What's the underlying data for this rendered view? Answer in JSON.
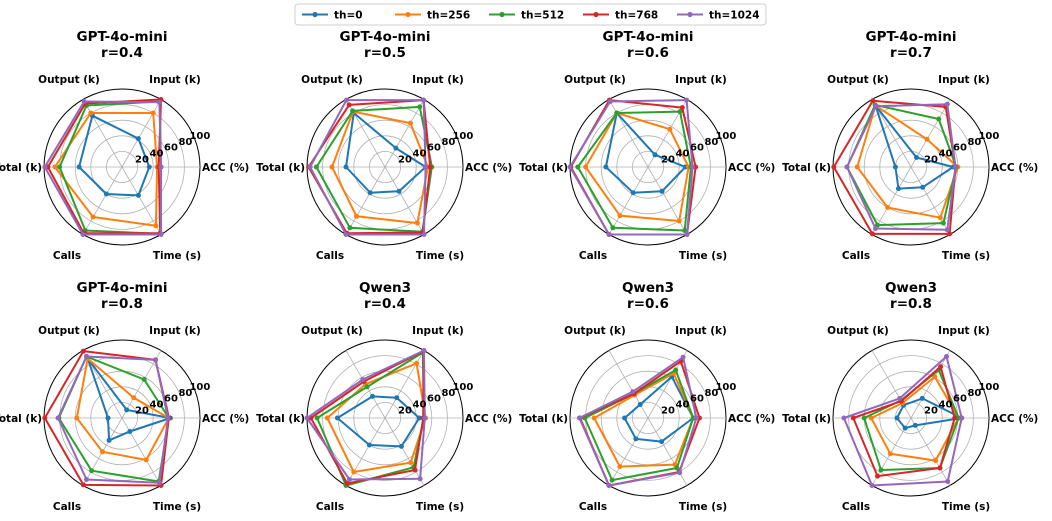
{
  "chart_data": {
    "type": "radar",
    "axes": [
      "ACC (%)",
      "Input (k)",
      "Output (k)",
      "Total (k)",
      "Calls",
      "Time (s)"
    ],
    "rticks": [
      "20",
      "40",
      "60",
      "80",
      "100"
    ],
    "rlim": [
      0,
      100
    ],
    "series_names": [
      "th=0",
      "th=256",
      "th=512",
      "th=768",
      "th=1024"
    ],
    "colors": [
      "#1f77b4",
      "#ff7f0e",
      "#2ca02c",
      "#d62728",
      "#9467bd"
    ],
    "legend_position": "top-center",
    "grid": true,
    "panels": [
      {
        "title_line1": "GPT-4o-mini",
        "title_line2": "r=0.4",
        "series": [
          [
            35,
            42,
            76,
            55,
            40,
            42
          ],
          [
            45,
            80,
            80,
            86,
            74,
            87
          ],
          [
            50,
            97,
            91,
            80,
            94,
            99
          ],
          [
            47,
            100,
            94,
            95,
            98,
            98
          ],
          [
            50,
            96,
            97,
            99,
            100,
            100
          ]
        ]
      },
      {
        "title_line1": "GPT-4o-mini",
        "title_line2": "r=0.5",
        "series": [
          [
            52,
            28,
            80,
            50,
            38,
            36
          ],
          [
            55,
            65,
            82,
            68,
            73,
            83
          ],
          [
            60,
            89,
            83,
            88,
            90,
            96
          ],
          [
            58,
            99,
            92,
            98,
            98,
            97
          ],
          [
            52,
            99,
            99,
            96,
            100,
            100
          ]
        ]
      },
      {
        "title_line1": "GPT-4o-mini",
        "title_line2": "r=0.6",
        "series": [
          [
            48,
            18,
            80,
            54,
            38,
            36
          ],
          [
            52,
            56,
            80,
            80,
            72,
            80
          ],
          [
            55,
            82,
            80,
            90,
            90,
            94
          ],
          [
            61,
            88,
            99,
            99,
            100,
            100
          ],
          [
            57,
            99,
            97,
            100,
            100,
            100
          ]
        ]
      },
      {
        "title_line1": "GPT-4o-mini",
        "title_line2": "r=0.7",
        "series": [
          [
            54,
            14,
            91,
            20,
            32,
            30
          ],
          [
            60,
            41,
            91,
            69,
            60,
            75
          ],
          [
            58,
            71,
            92,
            82,
            86,
            83
          ],
          [
            57,
            89,
            98,
            99,
            99,
            99
          ],
          [
            57,
            93,
            90,
            82,
            91,
            93
          ]
        ]
      },
      {
        "title_line1": "GPT-4o-mini",
        "title_line2": "r=0.8",
        "series": [
          [
            62,
            12,
            88,
            18,
            33,
            20
          ],
          [
            60,
            30,
            88,
            58,
            50,
            62
          ],
          [
            60,
            57,
            91,
            81,
            78,
            94
          ],
          [
            60,
            86,
            99,
            99,
            99,
            100
          ],
          [
            59,
            86,
            91,
            82,
            91,
            96
          ]
        ]
      },
      {
        "title_line1": "Qwen3",
        "title_line2": "r=0.4",
        "series": [
          [
            44,
            30,
            32,
            61,
            40,
            42
          ],
          [
            52,
            81,
            50,
            74,
            80,
            66
          ],
          [
            50,
            97,
            46,
            87,
            100,
            73
          ],
          [
            49,
            99,
            54,
            95,
            97,
            77
          ],
          [
            51,
            100,
            57,
            100,
            91,
            90
          ]
        ]
      },
      {
        "title_line1": "Qwen3",
        "title_line2": "r=0.6",
        "series": [
          [
            58,
            61,
            20,
            30,
            31,
            35
          ],
          [
            58,
            66,
            34,
            69,
            72,
            69
          ],
          [
            58,
            71,
            36,
            81,
            92,
            74
          ],
          [
            66,
            84,
            36,
            87,
            100,
            80
          ],
          [
            62,
            90,
            39,
            88,
            100,
            81
          ]
        ]
      },
      {
        "title_line1": "Qwen3",
        "title_line2": "r=0.8",
        "series": [
          [
            65,
            29,
            19,
            18,
            15,
            11
          ],
          [
            61,
            61,
            22,
            51,
            53,
            63
          ],
          [
            61,
            71,
            26,
            60,
            77,
            74
          ],
          [
            56,
            76,
            25,
            74,
            86,
            74
          ],
          [
            65,
            91,
            29,
            86,
            100,
            94
          ]
        ]
      }
    ]
  }
}
